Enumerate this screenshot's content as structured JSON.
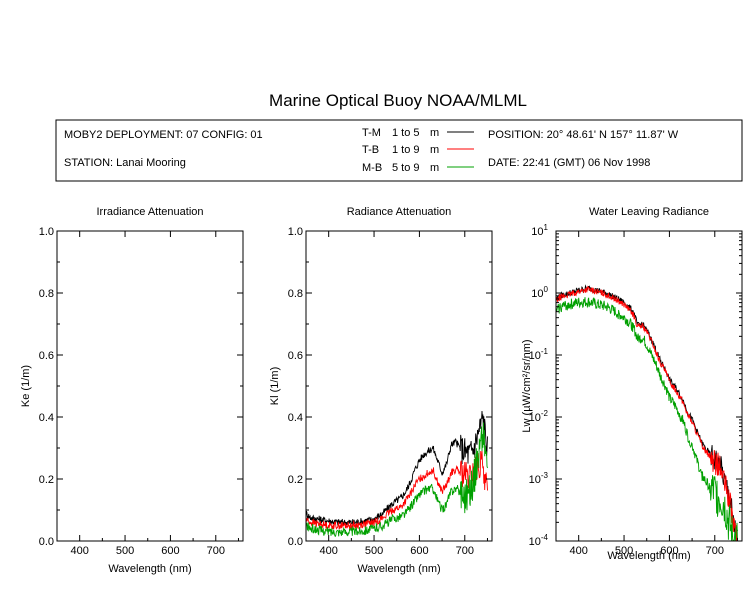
{
  "title": "Marine Optical Buoy NOAA/MLML",
  "info": {
    "deployment": "MOBY2 DEPLOYMENT: 07 CONFIG: 01",
    "station": "STATION: Lanai Mooring",
    "position": "POSITION: 20° 48.61' N   157° 11.87' W",
    "date": "DATE: 22:41 (GMT) 06 Nov 1998",
    "legend": [
      {
        "tag": "T-M",
        "range": "1 to 5",
        "unit": "m",
        "color": "#000000"
      },
      {
        "tag": "T-B",
        "range": "1 to 9",
        "unit": "m",
        "color": "#ff0000"
      },
      {
        "tag": "M-B",
        "range": "5 to 9",
        "unit": "m",
        "color": "#00a000"
      }
    ]
  },
  "chart_data": [
    {
      "type": "line",
      "title": "Irradiance Attenuation",
      "xlabel": "Wavelength (nm)",
      "ylabel": "Ke  (1/m)",
      "xlim": [
        350,
        760
      ],
      "ylim": [
        0,
        1.0
      ],
      "xticks": [
        "400",
        "500",
        "600",
        "700"
      ],
      "yticks": [
        "0.0",
        "0.2",
        "0.4",
        "0.6",
        "0.8",
        "1.0"
      ],
      "series": []
    },
    {
      "type": "line",
      "title": "Radiance Attenuation",
      "xlabel": "Wavelength (nm)",
      "ylabel": "Kl  (1/m)",
      "xlim": [
        350,
        760
      ],
      "ylim": [
        0,
        1.0
      ],
      "xticks": [
        "400",
        "500",
        "600",
        "700"
      ],
      "yticks": [
        "0.0",
        "0.2",
        "0.4",
        "0.6",
        "0.8",
        "1.0"
      ],
      "series": [
        {
          "name": "T-M",
          "color": "#000000",
          "noise": 0.012,
          "x": [
            350,
            360,
            380,
            400,
            420,
            440,
            460,
            480,
            500,
            520,
            540,
            560,
            570,
            580,
            590,
            600,
            610,
            620,
            630,
            640,
            650,
            660,
            670,
            680,
            690,
            700,
            710,
            720,
            730,
            740,
            750
          ],
          "y": [
            0.09,
            0.075,
            0.07,
            0.065,
            0.06,
            0.06,
            0.06,
            0.065,
            0.07,
            0.09,
            0.12,
            0.14,
            0.16,
            0.19,
            0.23,
            0.26,
            0.28,
            0.29,
            0.3,
            0.26,
            0.22,
            0.25,
            0.31,
            0.32,
            0.3,
            0.29,
            0.28,
            0.3,
            0.35,
            0.4,
            0.3
          ]
        },
        {
          "name": "T-B",
          "color": "#ff0000",
          "noise": 0.012,
          "x": [
            350,
            360,
            380,
            400,
            420,
            440,
            460,
            480,
            500,
            520,
            540,
            560,
            570,
            580,
            590,
            600,
            610,
            620,
            630,
            640,
            650,
            660,
            670,
            680,
            690,
            700,
            710,
            720,
            730,
            740,
            750
          ],
          "y": [
            0.07,
            0.06,
            0.055,
            0.05,
            0.05,
            0.05,
            0.05,
            0.055,
            0.06,
            0.075,
            0.1,
            0.11,
            0.13,
            0.15,
            0.18,
            0.2,
            0.21,
            0.22,
            0.23,
            0.19,
            0.16,
            0.18,
            0.22,
            0.23,
            0.22,
            0.21,
            0.2,
            0.22,
            0.24,
            0.25,
            0.15
          ]
        },
        {
          "name": "M-B",
          "color": "#00a000",
          "noise": 0.015,
          "x": [
            350,
            360,
            380,
            400,
            420,
            440,
            460,
            480,
            500,
            520,
            540,
            560,
            570,
            580,
            590,
            600,
            610,
            620,
            630,
            640,
            650,
            660,
            670,
            680,
            690,
            700,
            710,
            720,
            730,
            740,
            750
          ],
          "y": [
            0.05,
            0.04,
            0.035,
            0.03,
            0.03,
            0.03,
            0.03,
            0.035,
            0.04,
            0.05,
            0.07,
            0.08,
            0.09,
            0.11,
            0.13,
            0.15,
            0.16,
            0.17,
            0.17,
            0.13,
            0.1,
            0.12,
            0.16,
            0.17,
            0.16,
            0.15,
            0.16,
            0.2,
            0.28,
            0.35,
            0.25
          ]
        }
      ]
    },
    {
      "type": "line",
      "title": "Water Leaving Radiance",
      "xlabel": "Wavelength (nm)",
      "ylabel": "Lw  (µW/cm²/sr/nm)",
      "xlim": [
        350,
        760
      ],
      "ylim": [
        0.0001,
        10
      ],
      "yscale": "log",
      "xticks": [
        "400",
        "500",
        "600",
        "700"
      ],
      "yticks": [
        "10^1",
        "10^0",
        "10^-1",
        "10^-2",
        "10^-3",
        "10^-4"
      ],
      "series": [
        {
          "name": "T-M",
          "color": "#000000",
          "noise": 0.05,
          "x": [
            350,
            360,
            380,
            400,
            420,
            440,
            460,
            480,
            500,
            520,
            530,
            540,
            560,
            570,
            580,
            600,
            620,
            640,
            660,
            670,
            680,
            690,
            700,
            710,
            720,
            730,
            740,
            750
          ],
          "y": [
            0.8,
            0.9,
            1.0,
            1.1,
            1.2,
            1.1,
            1.0,
            0.85,
            0.7,
            0.5,
            0.3,
            0.32,
            0.18,
            0.12,
            0.08,
            0.04,
            0.025,
            0.012,
            0.006,
            0.004,
            0.003,
            0.0025,
            0.002,
            0.0018,
            0.001,
            0.0006,
            0.0002,
            0.0001
          ]
        },
        {
          "name": "T-B",
          "color": "#ff0000",
          "noise": 0.05,
          "x": [
            350,
            360,
            380,
            400,
            420,
            440,
            460,
            480,
            500,
            520,
            530,
            540,
            560,
            570,
            580,
            600,
            620,
            640,
            660,
            670,
            680,
            690,
            700,
            710,
            720,
            730,
            740,
            750
          ],
          "y": [
            0.75,
            0.85,
            0.95,
            1.05,
            1.15,
            1.05,
            0.95,
            0.8,
            0.65,
            0.45,
            0.28,
            0.3,
            0.17,
            0.11,
            0.075,
            0.037,
            0.023,
            0.011,
            0.0055,
            0.0037,
            0.0028,
            0.0023,
            0.0019,
            0.0016,
            0.0009,
            0.0005,
            0.0002,
            0.0001
          ]
        },
        {
          "name": "M-B",
          "color": "#00a000",
          "noise": 0.09,
          "x": [
            350,
            360,
            380,
            400,
            420,
            440,
            460,
            480,
            500,
            520,
            530,
            540,
            560,
            570,
            580,
            600,
            620,
            640,
            660,
            670,
            680,
            690,
            700,
            710,
            720,
            730,
            740,
            750
          ],
          "y": [
            0.5,
            0.6,
            0.65,
            0.7,
            0.72,
            0.65,
            0.6,
            0.5,
            0.4,
            0.28,
            0.18,
            0.19,
            0.1,
            0.07,
            0.045,
            0.02,
            0.012,
            0.005,
            0.002,
            0.0012,
            0.0009,
            0.0007,
            0.0006,
            0.0005,
            0.0004,
            0.0002,
            0.0001,
            0.0001
          ]
        }
      ]
    }
  ]
}
